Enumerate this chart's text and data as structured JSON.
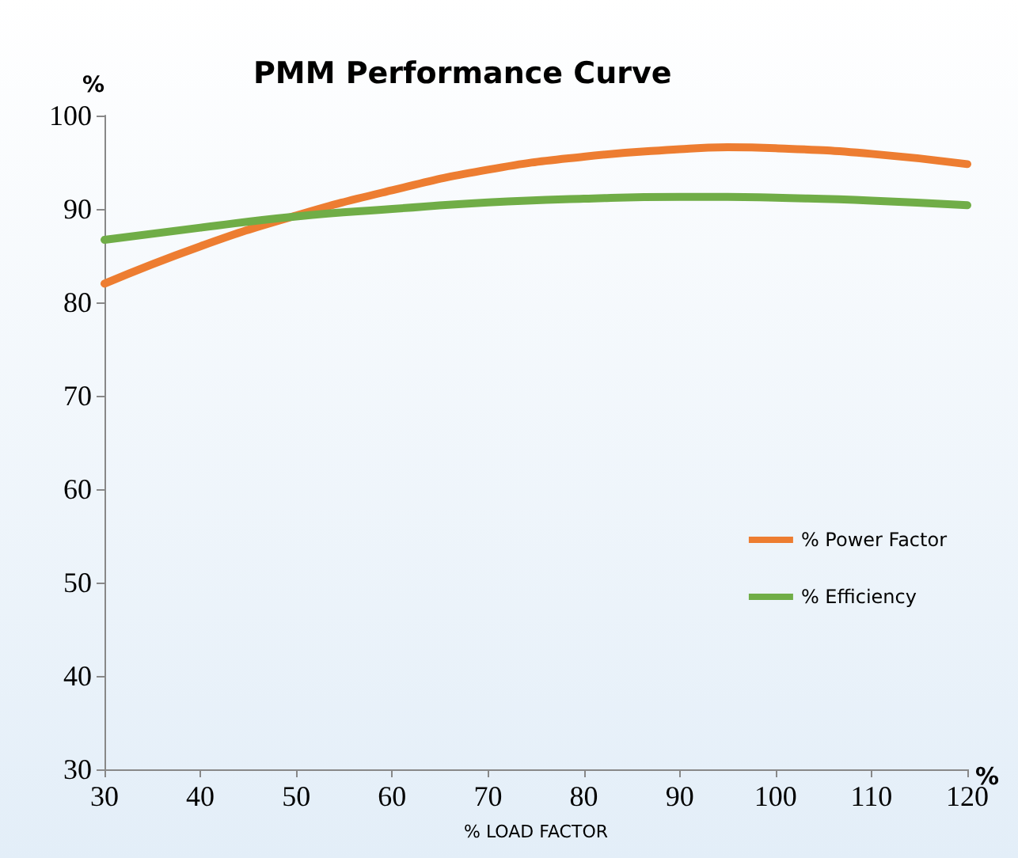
{
  "chart_data": {
    "type": "line",
    "title": "PMM Performance Curve",
    "xlabel": "% LOAD FACTOR",
    "ylabel": "%",
    "annotations": [
      "%"
    ],
    "x": [
      30,
      40,
      50,
      60,
      70,
      80,
      90,
      95,
      100,
      110,
      120
    ],
    "series": [
      {
        "name": "% Power Factor",
        "color": "#ed7d31",
        "values": [
          82,
          86,
          89.3,
          92,
          94.2,
          95.6,
          96.4,
          96.6,
          96.5,
          95.9,
          94.8
        ]
      },
      {
        "name": "% Efficiency",
        "color": "#70ad47",
        "values": [
          86.7,
          88,
          89.2,
          90,
          90.7,
          91.1,
          91.3,
          91.3,
          91.2,
          90.9,
          90.4
        ]
      }
    ],
    "xlim": [
      30,
      120
    ],
    "xticks": [
      30,
      40,
      50,
      60,
      70,
      80,
      90,
      100,
      110,
      120
    ],
    "ylim": [
      30,
      100
    ],
    "yticks": [
      30,
      40,
      50,
      60,
      70,
      80,
      90,
      100
    ],
    "grid": false,
    "legend": "right",
    "marker": "none",
    "line_style": "solid"
  }
}
